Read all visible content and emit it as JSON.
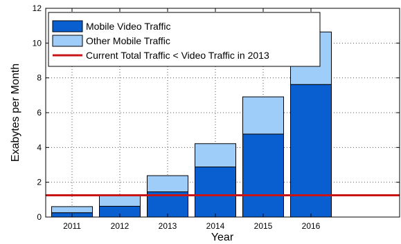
{
  "chart_data": {
    "type": "bar",
    "stacked": true,
    "categories": [
      "2011",
      "2012",
      "2013",
      "2014",
      "2015",
      "2016"
    ],
    "series": [
      {
        "name": "Mobile Video Traffic",
        "color": "#0a5fd0",
        "values": [
          0.25,
          0.62,
          1.45,
          2.88,
          4.77,
          7.62
        ]
      },
      {
        "name": "Other Mobile Traffic",
        "color": "#9fcdfa",
        "values": [
          0.35,
          0.63,
          0.93,
          1.34,
          2.14,
          3.02
        ]
      }
    ],
    "reference_line": {
      "name": "Current Total Traffic < Video Traffic in 2013",
      "value": 1.25,
      "color": "#c81414"
    },
    "xlabel": "Year",
    "ylabel": "Exabytes per Month",
    "ylim": [
      0,
      12
    ],
    "yticks": [
      0,
      2,
      4,
      6,
      8,
      10,
      12
    ],
    "grid": true,
    "legend_position": "top-left"
  }
}
